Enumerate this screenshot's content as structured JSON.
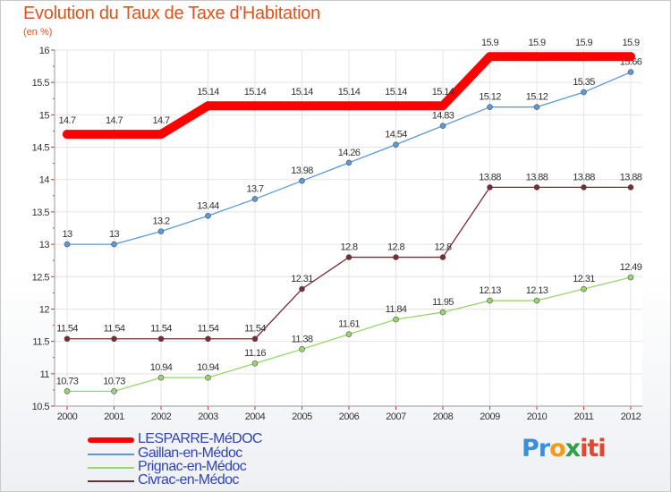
{
  "header": {
    "title": "Evolution du Taux de Taxe d'Habitation",
    "unit": "(en %)"
  },
  "logo": {
    "parts": [
      "Pr",
      "o",
      "x",
      "iti"
    ]
  },
  "chart_data": {
    "type": "line",
    "title": "Evolution du Taux de Taxe d'Habitation",
    "ylabel": "(en %)",
    "xlabel": "",
    "x": [
      "2000",
      "2001",
      "2002",
      "2003",
      "2004",
      "2005",
      "2006",
      "2007",
      "2008",
      "2009",
      "2010",
      "2011",
      "2012"
    ],
    "ylim": [
      10.5,
      16
    ],
    "yticks": [
      10.5,
      11,
      11.5,
      12,
      12.5,
      13,
      13.5,
      14,
      14.5,
      15,
      15.5,
      16
    ],
    "ytick_labels": [
      "10.5",
      "11",
      "11.5",
      "12",
      "12.5",
      "13",
      "13.5",
      "14",
      "14.5",
      "15",
      "15.5",
      "16"
    ],
    "grid": true,
    "legend_position": "bottom-left",
    "series": [
      {
        "name": "LESPARRE-MéDOC",
        "color": "#ff0000",
        "values": [
          14.7,
          14.7,
          14.7,
          15.14,
          15.14,
          15.14,
          15.14,
          15.14,
          15.14,
          15.9,
          15.9,
          15.9,
          15.9
        ],
        "labels": [
          "14.7",
          "14.7",
          "14.7",
          "15.14",
          "15.14",
          "15.14",
          "15.14",
          "15.14",
          "15.14",
          "15.9",
          "15.9",
          "15.9",
          "15.9"
        ]
      },
      {
        "name": "Gaillan-en-Médoc",
        "color": "#5b9ad5",
        "values": [
          13,
          13,
          13.2,
          13.44,
          13.7,
          13.98,
          14.26,
          14.54,
          14.83,
          15.12,
          15.12,
          15.35,
          15.66
        ],
        "labels": [
          "13",
          "13",
          "13.2",
          "13.44",
          "13.7",
          "13.98",
          "14.26",
          "14.54",
          "14.83",
          "15.12",
          "15.12",
          "15.35",
          "15.66"
        ]
      },
      {
        "name": "Prignac-en-Médoc",
        "color": "#97d66b",
        "values": [
          10.73,
          10.73,
          10.94,
          10.94,
          11.16,
          11.38,
          11.61,
          11.84,
          11.95,
          12.13,
          12.13,
          12.31,
          12.49
        ],
        "labels": [
          "10.73",
          "10.73",
          "10.94",
          "10.94",
          "11.16",
          "11.38",
          "11.61",
          "11.84",
          "11.95",
          "12.13",
          "12.13",
          "12.31",
          "12.49"
        ]
      },
      {
        "name": "Civrac-en-Médoc",
        "color": "#7a2a33",
        "values": [
          11.54,
          11.54,
          11.54,
          11.54,
          11.54,
          12.31,
          12.8,
          12.8,
          12.8,
          13.88,
          13.88,
          13.88,
          13.88
        ],
        "labels": [
          "11.54",
          "11.54",
          "11.54",
          "11.54",
          "11.54",
          "12.31",
          "12.8",
          "12.8",
          "12.8",
          "13.88",
          "13.88",
          "13.88",
          "13.88"
        ]
      }
    ]
  }
}
